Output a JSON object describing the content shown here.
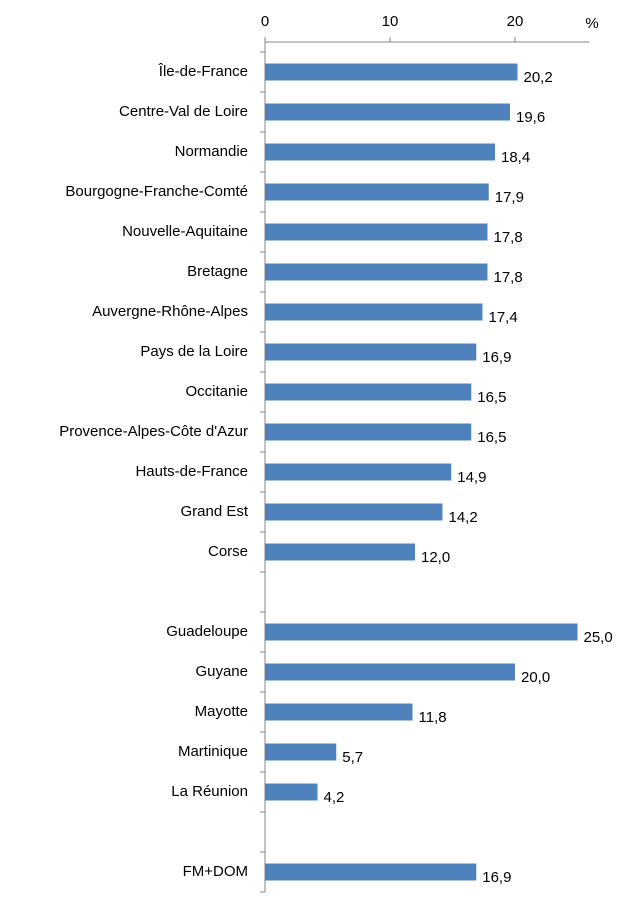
{
  "chart_data": {
    "type": "bar",
    "orientation": "horizontal",
    "x_label": "%",
    "categories": [
      "Île-de-France",
      "Centre-Val de Loire",
      "Normandie",
      "Bourgogne-Franche-Comté",
      "Nouvelle-Aquitaine",
      "Bretagne",
      "Auvergne-Rhône-Alpes",
      "Pays de la Loire",
      "Occitanie",
      "Provence-Alpes-Côte d'Azur",
      "Hauts-de-France",
      "Grand Est",
      "Corse",
      null,
      "Guadeloupe",
      "Guyane",
      "Mayotte",
      "Martinique",
      "La Réunion",
      null,
      "FM+DOM"
    ],
    "values": [
      20.2,
      19.6,
      18.4,
      17.9,
      17.8,
      17.8,
      17.4,
      16.9,
      16.5,
      16.5,
      14.9,
      14.2,
      12.0,
      null,
      25.0,
      20.0,
      11.8,
      5.7,
      4.2,
      null,
      16.9
    ],
    "value_labels": [
      "20,2",
      "19,6",
      "18,4",
      "17,9",
      "17,8",
      "17,8",
      "17,4",
      "16,9",
      "16,5",
      "16,5",
      "14,9",
      "14,2",
      "12,0",
      null,
      "25,0",
      "20,0",
      "11,8",
      "5,7",
      "4,2",
      null,
      "16,9"
    ],
    "color": "#4f81bd",
    "xlim": [
      0,
      25
    ],
    "xticks": [
      0,
      10,
      20
    ]
  }
}
